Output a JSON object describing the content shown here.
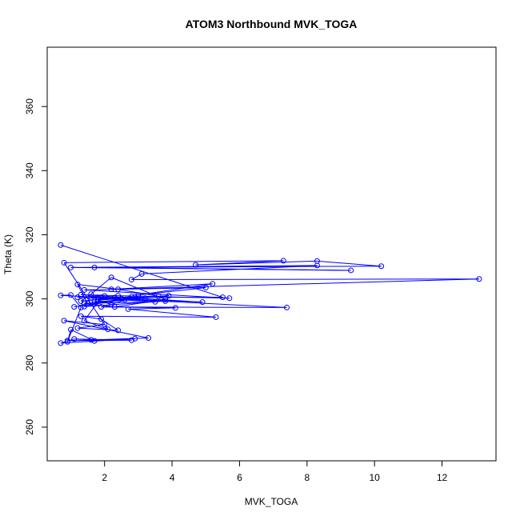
{
  "chart_data": {
    "type": "line",
    "title": "ATOM3 Northbound MVK_TOGA",
    "xlabel": "MVK_TOGA",
    "ylabel": "Theta (K)",
    "xlim": [
      0.3,
      13.6
    ],
    "ylim": [
      249.5,
      378.5
    ],
    "xticks": [
      2,
      4,
      6,
      8,
      10,
      12
    ],
    "yticks": [
      260,
      280,
      300,
      320,
      340,
      360
    ],
    "grid": false,
    "series": [
      {
        "color": "#0000ff",
        "marker": "open-circle",
        "points": [
          [
            0.7,
            316.8
          ],
          [
            5.5,
            300.5
          ],
          [
            1.9,
            300.5
          ],
          [
            1.4,
            293.2
          ],
          [
            2.1,
            290.5
          ],
          [
            0.8,
            311.3
          ],
          [
            7.3,
            311.9
          ],
          [
            4.7,
            310.6
          ],
          [
            8.3,
            311.8
          ],
          [
            10.2,
            310.2
          ],
          [
            1.7,
            309.8
          ],
          [
            9.3,
            308.9
          ],
          [
            1.0,
            309.8
          ],
          [
            8.3,
            310.4
          ],
          [
            3.1,
            307.8
          ],
          [
            2.8,
            306.0
          ],
          [
            13.1,
            306.2
          ],
          [
            2.2,
            303.0
          ],
          [
            5.2,
            304.7
          ],
          [
            3.0,
            301.2
          ],
          [
            5.0,
            303.5
          ],
          [
            1.4,
            302.8
          ],
          [
            5.7,
            300.2
          ],
          [
            2.4,
            301.0
          ],
          [
            1.3,
            301.3
          ],
          [
            4.9,
            299.0
          ],
          [
            1.6,
            300.4
          ],
          [
            7.4,
            297.3
          ],
          [
            1.9,
            297.5
          ],
          [
            4.1,
            297.2
          ],
          [
            2.7,
            296.8
          ],
          [
            5.3,
            294.3
          ],
          [
            1.3,
            294.6
          ],
          [
            1.9,
            293.7
          ],
          [
            2.4,
            290.2
          ],
          [
            1.2,
            290.9
          ],
          [
            2.0,
            292.0
          ],
          [
            0.8,
            293.2
          ],
          [
            3.3,
            287.8
          ],
          [
            1.6,
            287.2
          ],
          [
            0.9,
            287.0
          ],
          [
            2.8,
            287.1
          ],
          [
            1.1,
            287.5
          ],
          [
            0.7,
            286.2
          ],
          [
            2.9,
            287.6
          ],
          [
            1.7,
            286.9
          ],
          [
            1.0,
            290.4
          ],
          [
            0.9,
            286.6
          ],
          [
            1.3,
            297.3
          ],
          [
            1.0,
            301.2
          ],
          [
            0.7,
            301.1
          ],
          [
            1.8,
            300.5
          ],
          [
            2.3,
            300.4
          ],
          [
            2.5,
            300.1
          ],
          [
            1.8,
            299.6
          ],
          [
            2.2,
            298.3
          ],
          [
            2.9,
            300.6
          ],
          [
            3.2,
            300.2
          ],
          [
            1.5,
            298.5
          ],
          [
            1.2,
            304.5
          ],
          [
            2.4,
            303.0
          ],
          [
            3.6,
            300.8
          ],
          [
            3.9,
            301.0
          ],
          [
            1.7,
            299.0
          ],
          [
            2.6,
            299.8
          ],
          [
            3.8,
            299.3
          ],
          [
            1.4,
            297.6
          ],
          [
            2.8,
            300.7
          ],
          [
            1.3,
            299.3
          ],
          [
            1.6,
            301.5
          ],
          [
            2.2,
            306.7
          ],
          [
            3.8,
            299.8
          ],
          [
            2.3,
            297.5
          ],
          [
            1.4,
            298.6
          ],
          [
            3.5,
            299.1
          ],
          [
            1.2,
            300.5
          ],
          [
            2.0,
            300.9
          ],
          [
            1.7,
            298.4
          ],
          [
            3.0,
            300.7
          ],
          [
            1.1,
            297.5
          ]
        ]
      }
    ]
  }
}
